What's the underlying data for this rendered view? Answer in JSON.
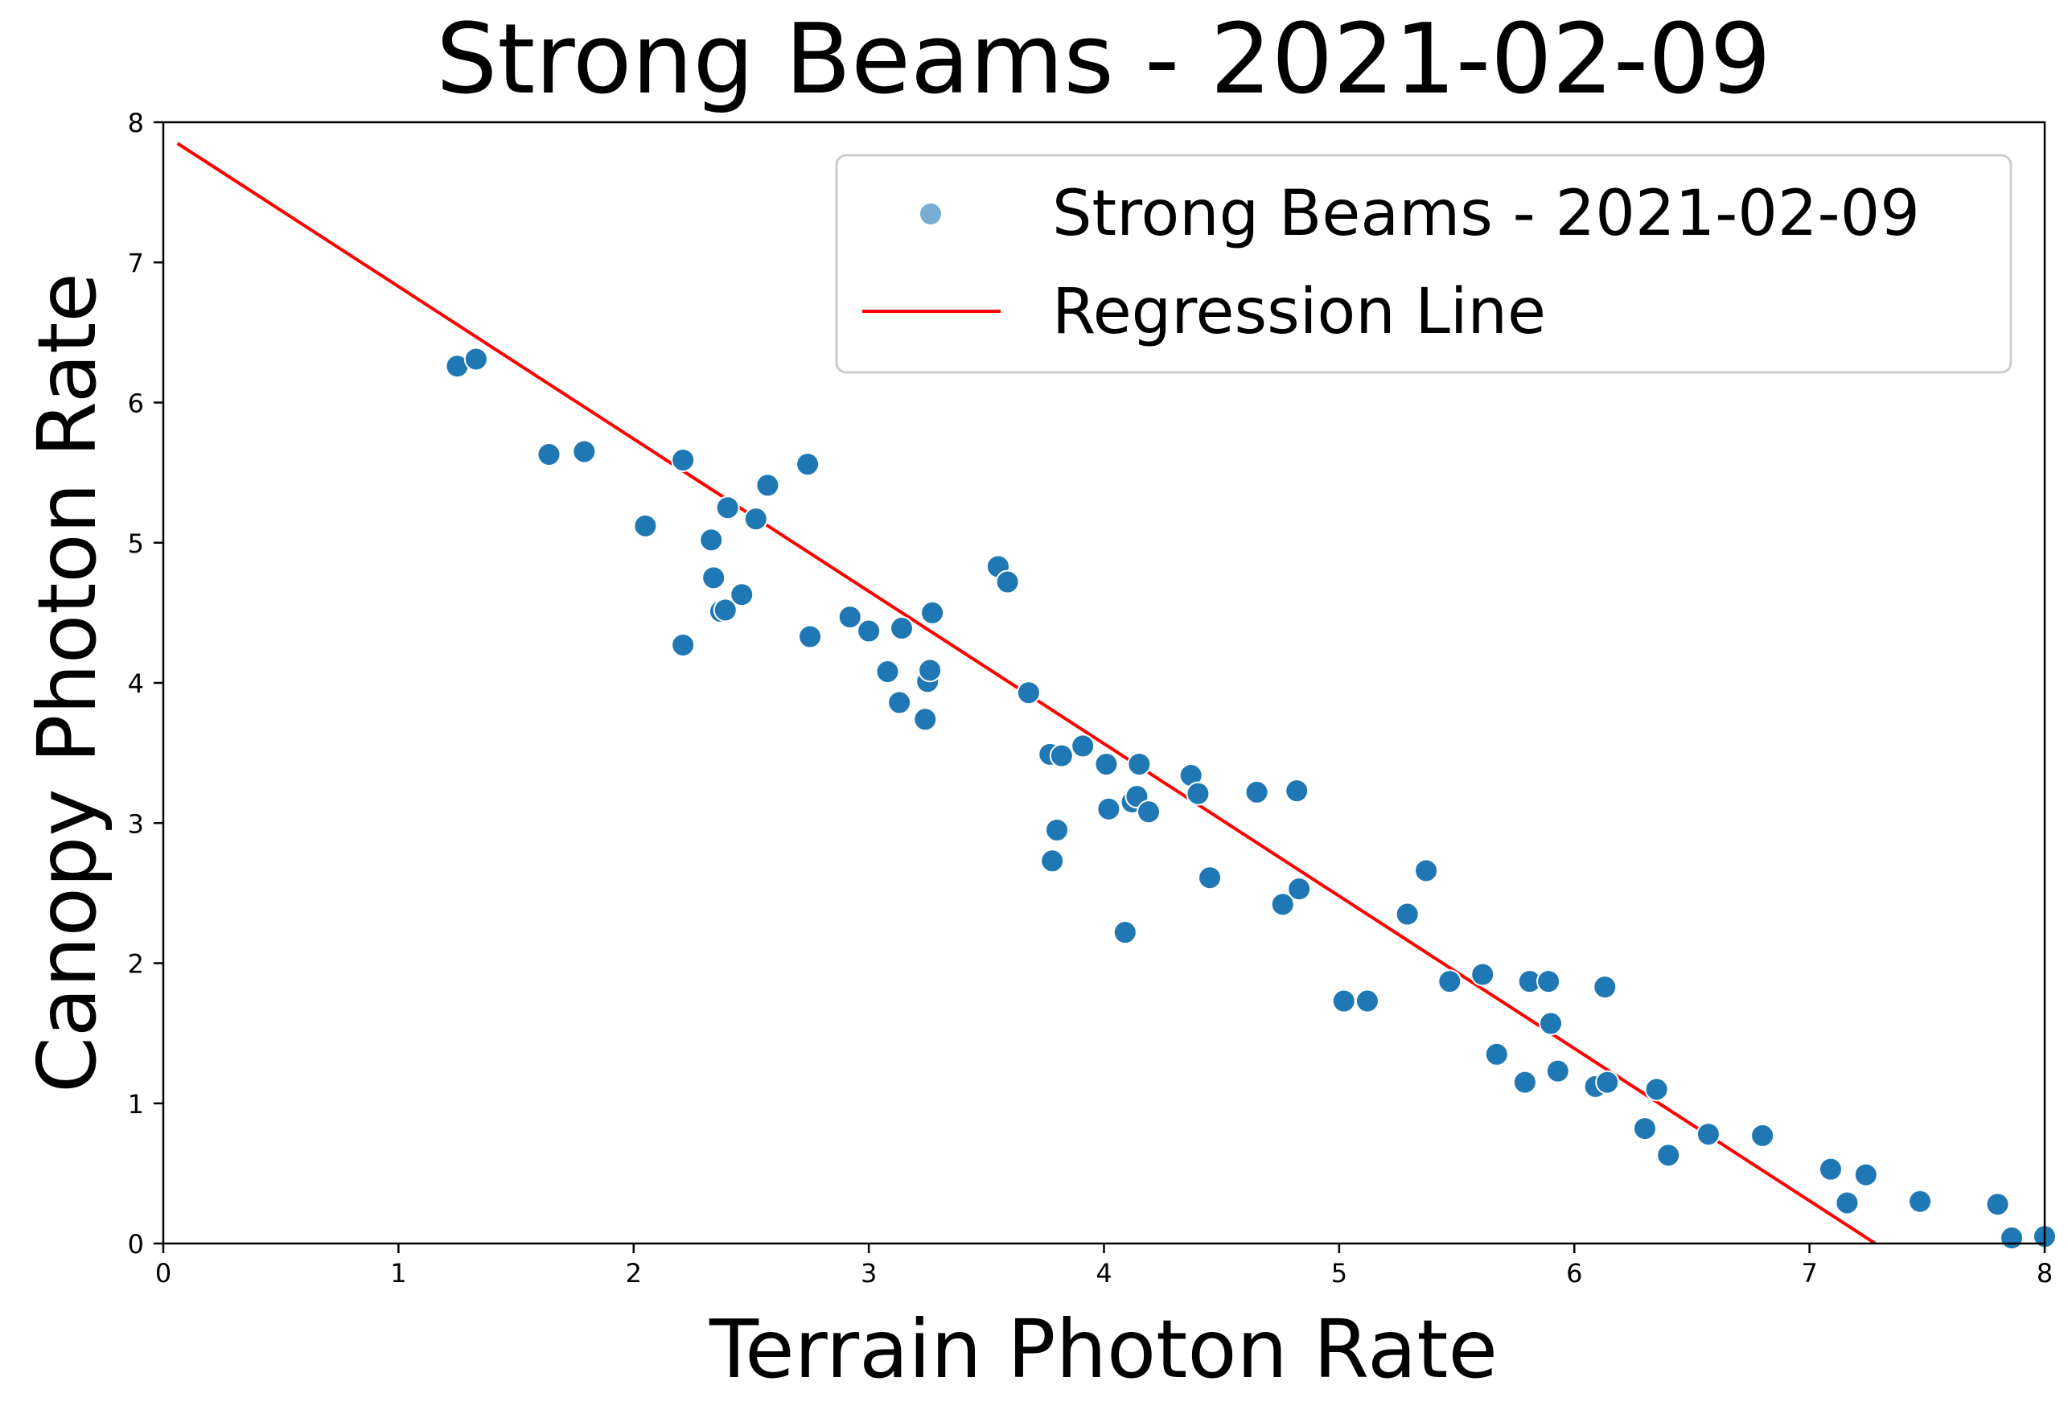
{
  "chart_data": {
    "type": "scatter",
    "title": "Strong Beams - 2021-02-09",
    "xlabel": "Terrain Photon Rate",
    "ylabel": "Canopy Photon Rate",
    "xlim": [
      0,
      8
    ],
    "ylim": [
      0,
      8
    ],
    "xticks": [
      "0",
      "1",
      "2",
      "3",
      "4",
      "5",
      "6",
      "7",
      "8"
    ],
    "yticks": [
      "0",
      "1",
      "2",
      "3",
      "4",
      "5",
      "6",
      "7",
      "8"
    ],
    "grid": false,
    "legend": {
      "placement": "upper right",
      "entries": [
        "Strong Beams - 2021-02-09",
        "Regression Line"
      ]
    },
    "colors": {
      "points": "#1f77b4",
      "point_edge": "#ffffff",
      "regression": "#ff0000"
    },
    "series": [
      {
        "name": "Strong Beams - 2021-02-09",
        "kind": "scatter",
        "points": [
          [
            1.25,
            6.26
          ],
          [
            1.33,
            6.31
          ],
          [
            1.64,
            5.63
          ],
          [
            1.79,
            5.65
          ],
          [
            2.05,
            5.12
          ],
          [
            2.21,
            5.59
          ],
          [
            2.21,
            4.27
          ],
          [
            2.33,
            5.02
          ],
          [
            2.34,
            4.75
          ],
          [
            2.37,
            4.51
          ],
          [
            2.39,
            4.52
          ],
          [
            2.4,
            5.25
          ],
          [
            2.46,
            4.63
          ],
          [
            2.52,
            5.17
          ],
          [
            2.57,
            5.41
          ],
          [
            2.74,
            5.56
          ],
          [
            2.75,
            4.33
          ],
          [
            2.92,
            4.47
          ],
          [
            3.0,
            4.37
          ],
          [
            3.08,
            4.08
          ],
          [
            3.13,
            3.86
          ],
          [
            3.14,
            4.39
          ],
          [
            3.24,
            3.74
          ],
          [
            3.25,
            4.01
          ],
          [
            3.26,
            4.09
          ],
          [
            3.27,
            4.5
          ],
          [
            3.55,
            4.83
          ],
          [
            3.59,
            4.72
          ],
          [
            3.68,
            3.93
          ],
          [
            3.77,
            3.49
          ],
          [
            3.78,
            2.73
          ],
          [
            3.8,
            2.95
          ],
          [
            3.82,
            3.48
          ],
          [
            3.91,
            3.55
          ],
          [
            4.01,
            3.42
          ],
          [
            4.02,
            3.1
          ],
          [
            4.09,
            2.22
          ],
          [
            4.12,
            3.15
          ],
          [
            4.14,
            3.19
          ],
          [
            4.15,
            3.42
          ],
          [
            4.19,
            3.08
          ],
          [
            4.37,
            3.34
          ],
          [
            4.4,
            3.21
          ],
          [
            4.45,
            2.61
          ],
          [
            4.65,
            3.22
          ],
          [
            4.76,
            2.42
          ],
          [
            4.82,
            3.23
          ],
          [
            4.83,
            2.53
          ],
          [
            5.02,
            1.73
          ],
          [
            5.12,
            1.73
          ],
          [
            5.29,
            2.35
          ],
          [
            5.37,
            2.66
          ],
          [
            5.47,
            1.87
          ],
          [
            5.61,
            1.92
          ],
          [
            5.67,
            1.35
          ],
          [
            5.79,
            1.15
          ],
          [
            5.81,
            1.87
          ],
          [
            5.89,
            1.87
          ],
          [
            5.9,
            1.57
          ],
          [
            5.93,
            1.23
          ],
          [
            6.09,
            1.12
          ],
          [
            6.13,
            1.83
          ],
          [
            6.14,
            1.15
          ],
          [
            6.3,
            0.82
          ],
          [
            6.35,
            1.1
          ],
          [
            6.4,
            0.63
          ],
          [
            6.57,
            0.78
          ],
          [
            6.8,
            0.77
          ],
          [
            7.09,
            0.53
          ],
          [
            7.16,
            0.29
          ],
          [
            7.24,
            0.49
          ],
          [
            7.47,
            0.3
          ],
          [
            7.8,
            0.28
          ],
          [
            7.86,
            0.04
          ],
          [
            8.0,
            0.05
          ]
        ]
      },
      {
        "name": "Regression Line",
        "kind": "line",
        "points": [
          [
            0.06,
            7.85
          ],
          [
            7.28,
            0.0
          ]
        ]
      }
    ]
  }
}
